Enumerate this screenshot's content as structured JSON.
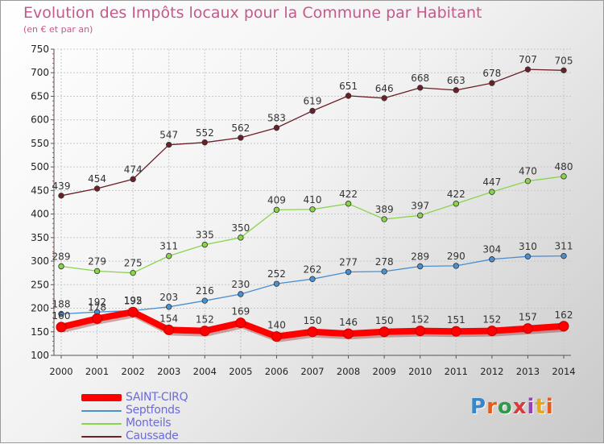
{
  "title": "Evolution des Impôts locaux pour la Commune par Habitant",
  "subtitle": "(en € et par an)",
  "logo": {
    "text": "Proxiti"
  },
  "chart_data": {
    "type": "line",
    "x": [
      "2000",
      "2001",
      "2002",
      "2003",
      "2004",
      "2005",
      "2006",
      "2007",
      "2008",
      "2009",
      "2010",
      "2011",
      "2012",
      "2013",
      "2014"
    ],
    "ylim": [
      100,
      750
    ],
    "yticks": [
      100,
      150,
      200,
      250,
      300,
      350,
      400,
      450,
      500,
      550,
      600,
      650,
      700,
      750
    ],
    "grid": true,
    "legend_position": "bottom-left",
    "series": [
      {
        "name": "Caussade",
        "color": "#6b1f26",
        "values": [
          439,
          454,
          474,
          547,
          552,
          562,
          583,
          619,
          651,
          646,
          668,
          663,
          678,
          707,
          705
        ]
      },
      {
        "name": "Monteils",
        "color": "#8ad44d",
        "values": [
          289,
          279,
          275,
          311,
          335,
          350,
          409,
          410,
          422,
          389,
          397,
          422,
          447,
          470,
          480
        ]
      },
      {
        "name": "Septfonds",
        "color": "#4a8fd0",
        "values": [
          188,
          192,
          195,
          203,
          216,
          230,
          252,
          262,
          277,
          278,
          289,
          290,
          304,
          310,
          311
        ]
      },
      {
        "name": "SAINT-CIRQ",
        "color": "#ff0000",
        "values": [
          160,
          178,
          192,
          154,
          152,
          169,
          140,
          150,
          146,
          150,
          152,
          151,
          152,
          157,
          162
        ]
      }
    ]
  }
}
